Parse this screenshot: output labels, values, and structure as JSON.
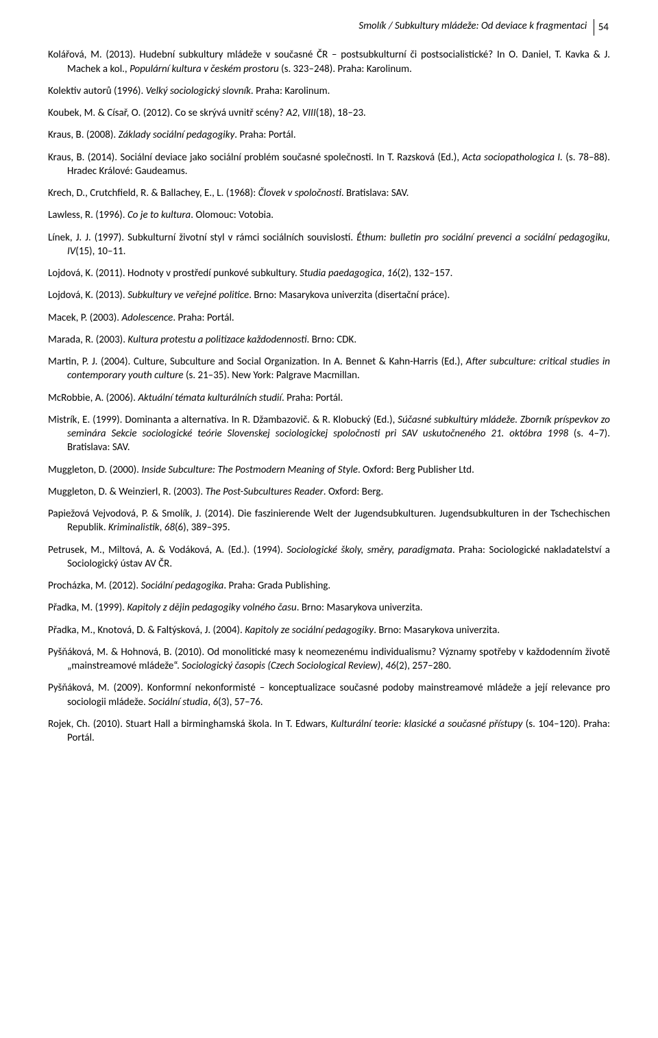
{
  "header": {
    "running_title": "Smolík / Subkultury mládeže: Od deviace k fragmentaci",
    "page_number": "54"
  },
  "references": [
    "Kolářová, M. (2013). Hudební subkultury mládeže v současné ČR – postsubkulturní či postsocialistické? In O. Daniel, T. Kavka & J. Machek a kol., <i>Populární kultura v českém prostoru</i> (s. 323–248). Praha: Karolinum.",
    "Kolektiv autorů (1996). <i>Velký sociologický slovník</i>. Praha: Karolinum.",
    "Koubek, M. & Císař, O. (2012). Co se skrývá uvnitř scény? <i>A2</i>, <i>VIII</i>(18), 18–23.",
    "Kraus, B. (2008). <i>Základy sociální pedagogiky</i>. Praha: Portál.",
    "Kraus, B. (2014). Sociální deviace jako sociální problém současné společnosti. In T. Razsková (Ed.), <i>Acta sociopathologica I.</i> (s. 78–88). Hradec Králové: Gaudeamus.",
    "Krech, D., Crutchfield, R. & Ballachey, E., L. (1968): <i>Človek v spoločnosti</i>. Bratislava: SAV.",
    "Lawless, R. (1996). <i>Co je to kultura</i>. Olomouc: Votobia.",
    "Línek, J. J. (1997). Subkulturní životní styl v rámci sociálních souvislostí. <i>Éthum: bulletin pro sociální prevenci a sociální pedagogiku, IV</i>(15), 10–11.",
    "Lojdová, K. (2011). Hodnoty v prostředí punkové subkultury. <i>Studia paedagogica</i>, <i>16</i>(2), 132–157.",
    "Lojdová, K. (2013). <i>Subkultury ve veřejné politice</i>. Brno: Masarykova univerzita (disertační práce).",
    "Macek, P. (2003). <i>Adolescence</i>. Praha: Portál.",
    "Marada, R. (2003). <i>Kultura protestu a politizace každodennosti</i>. Brno: CDK.",
    "Martin, P. J. (2004). Culture, Subculture and Social Organization. In A. Bennet & Kahn-Harris (Ed.), <i>After subculture: critical studies in contemporary youth culture</i> (s. 21–35). New York: Palgrave Macmillan.",
    "McRobbie, A. (2006). <i>Aktuální témata kulturálních studií</i>. Praha: Portál.",
    "Mistrík, E. (1999). Dominanta a alternatíva. In R. Džambazovič. & R. Klobucký (Ed.), <i>Súčasné subkultúry mládeže. Zborník príspevkov zo seminára Sekcie sociologické teórie Slovenskej sociologickej spoločnosti pri SAV uskutočneného 21. októbra 1998</i> (s. 4–7). Bratislava: SAV.",
    "Muggleton, D. (2000). <i>Inside Subculture: The Postmodern Meaning of Style</i>. Oxford: Berg Publisher Ltd.",
    "Muggleton, D. & Weinzierl, R. (2003). <i>The Post-Subcultures Reader</i>. Oxford: Berg.",
    "Papiežová Vejvodová, P. & Smolík, J. (2014). Die faszinierende Welt der Jugendsubkulturen. Jugendsubkulturen in der Tschechischen Republik. <i>Kriminalistik</i>, <i>68</i>(6), 389–395.",
    "Petrusek, M., Miltová, A. & Vodáková, A. (Ed.). (1994). <i>Sociologické školy, směry, paradigmata</i>. Praha: Sociologické nakladatelství a Sociologický ústav AV ČR.",
    "Procházka, M. (2012). <i>Sociální pedagogika</i>. Praha: Grada Publishing.",
    "Přadka, M. (1999). <i>Kapitoly z dějin pedagogiky volného času</i>. Brno: Masarykova univerzita.",
    "Přadka, M., Knotová, D. & Faltýsková, J. (2004). <i>Kapitoly ze sociální pedagogiky</i>. Brno: Masarykova univerzita.",
    "Pyšňáková, M. & Hohnová, B. (2010). Od monolitické masy k neomezenému individualismu? Významy spotřeby v každodenním životě „mainstreamové mládeže“. <i>Sociologický časopis (Czech Sociological Review), 46</i>(2), 257–280.",
    "Pyšňáková, M. (2009). Konformní nekonformisté – konceptualizace současné podoby mainstreamové mládeže a její relevance pro sociologii mládeže. <i>Sociální studia</i>, <i>6</i>(3), 57–76.",
    "Rojek, Ch. (2010). Stuart Hall a birminghamská škola. In T. Edwars, <i>Kulturální teorie: klasické a současné přístupy</i> (s. 104–120). Praha: Portál."
  ]
}
